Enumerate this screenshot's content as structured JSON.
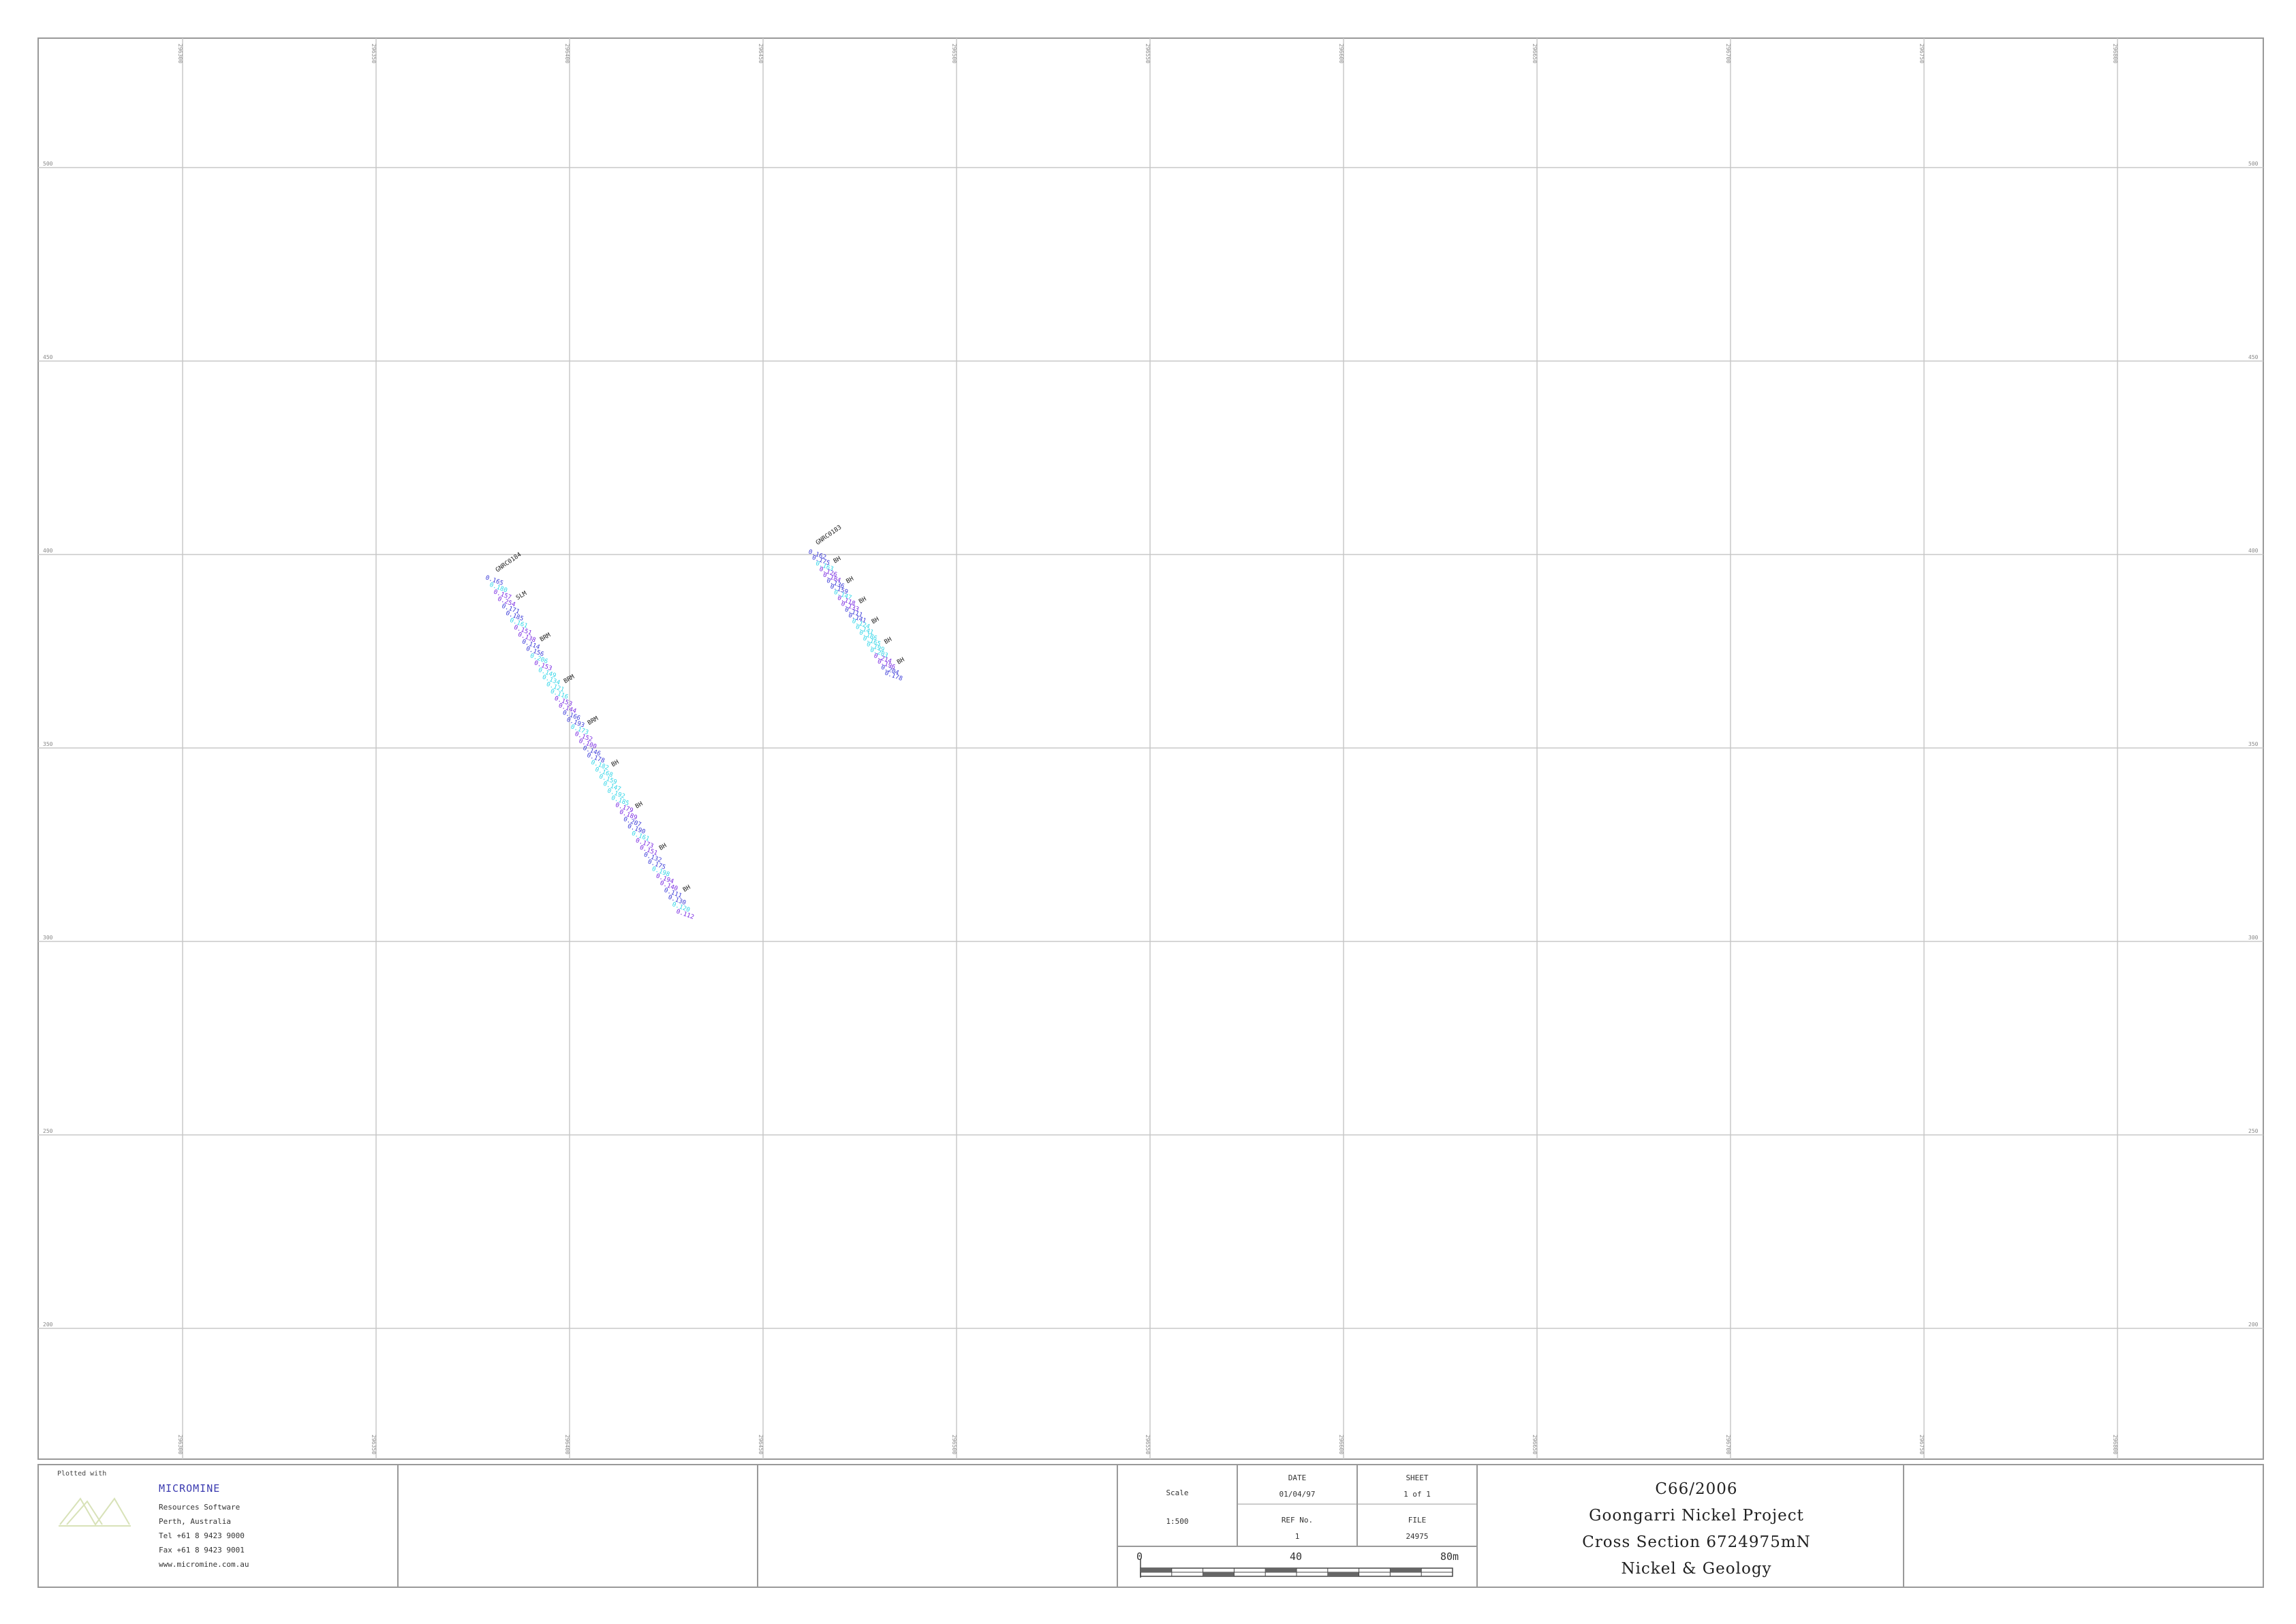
{
  "axes": {
    "x_labels": [
      "296300",
      "296350",
      "296400",
      "296450",
      "296500",
      "296550",
      "296600",
      "296650",
      "296700",
      "296750",
      "296800"
    ],
    "y_labels": [
      "500",
      "450",
      "400",
      "350",
      "300",
      "250",
      "200"
    ]
  },
  "drillholes": [
    {
      "id": "GNRC0184",
      "values": [
        "0.165",
        "0.180",
        "0.157",
        "0.254",
        "0.171",
        "0.185",
        "0.161",
        "0.151",
        "0.138",
        "0.114",
        "0.156",
        "0.206",
        "0.153",
        "0.149",
        "0.134",
        "0.121",
        "0.116",
        "0.153",
        "0.144",
        "0.166",
        "0.193",
        "0.173",
        "0.152",
        "0.100",
        "0.146",
        "0.178",
        "0.182",
        "0.168",
        "0.159",
        "0.147",
        "0.192",
        "0.185",
        "0.179",
        "0.189",
        "0.207",
        "0.190",
        "0.161",
        "0.173",
        "0.151",
        "0.132",
        "0.175",
        "0.198",
        "0.194",
        "0.140",
        "0.111",
        "0.130",
        "0.120",
        "0.112"
      ],
      "lithology": [
        "SLM",
        "BRM",
        "BRM",
        "BRM",
        "BH",
        "BH",
        "BH",
        "BH"
      ]
    },
    {
      "id": "GNRC0183",
      "values": [
        "0.162",
        "0.175",
        "0.163",
        "0.126",
        "0.184",
        "0.136",
        "0.159",
        "0.147",
        "0.118",
        "0.133",
        "0.111",
        "0.141",
        "0.124",
        "0.141",
        "0.186",
        "0.165",
        "0.199",
        "0.203",
        "0.214",
        "0.196",
        "0.204",
        "0.178"
      ],
      "lithology": [
        "BH",
        "BH",
        "BH",
        "BH",
        "BH",
        "BH"
      ]
    }
  ],
  "title_block": {
    "plotted_with": "Plotted with",
    "company": {
      "name": "MICROMINE",
      "line1": "Resources Software",
      "line2": "Perth, Australia",
      "tel": "Tel +61 8 9423 9000",
      "fax": "Fax +61 8 9423 9001",
      "web": "www.micromine.com.au"
    },
    "scale_label": "Scale",
    "scale_value": "1:500",
    "date_label": "DATE",
    "date_value": "01/04/97",
    "sheet_label": "SHEET",
    "sheet_value": "1 of 1",
    "ref_label": "REF No.",
    "ref_value": "1",
    "file_label": "FILE",
    "file_value": "24975",
    "scalebar_labels": [
      "0",
      "40",
      "80m"
    ],
    "title_lines": [
      "C66/2006",
      "Goongarri Nickel Project",
      "Cross Section 6724975mN",
      "Nickel & Geology"
    ]
  },
  "colors": {
    "grid": "#c8c8c8",
    "frame": "#999999",
    "value_blue": "#3a3ad8",
    "value_purple": "#7a2be2",
    "value_cyan": "#33d6e8",
    "label_black": "#222222",
    "company_name": "#3b3bb0",
    "logo": "#d8e2b8"
  }
}
